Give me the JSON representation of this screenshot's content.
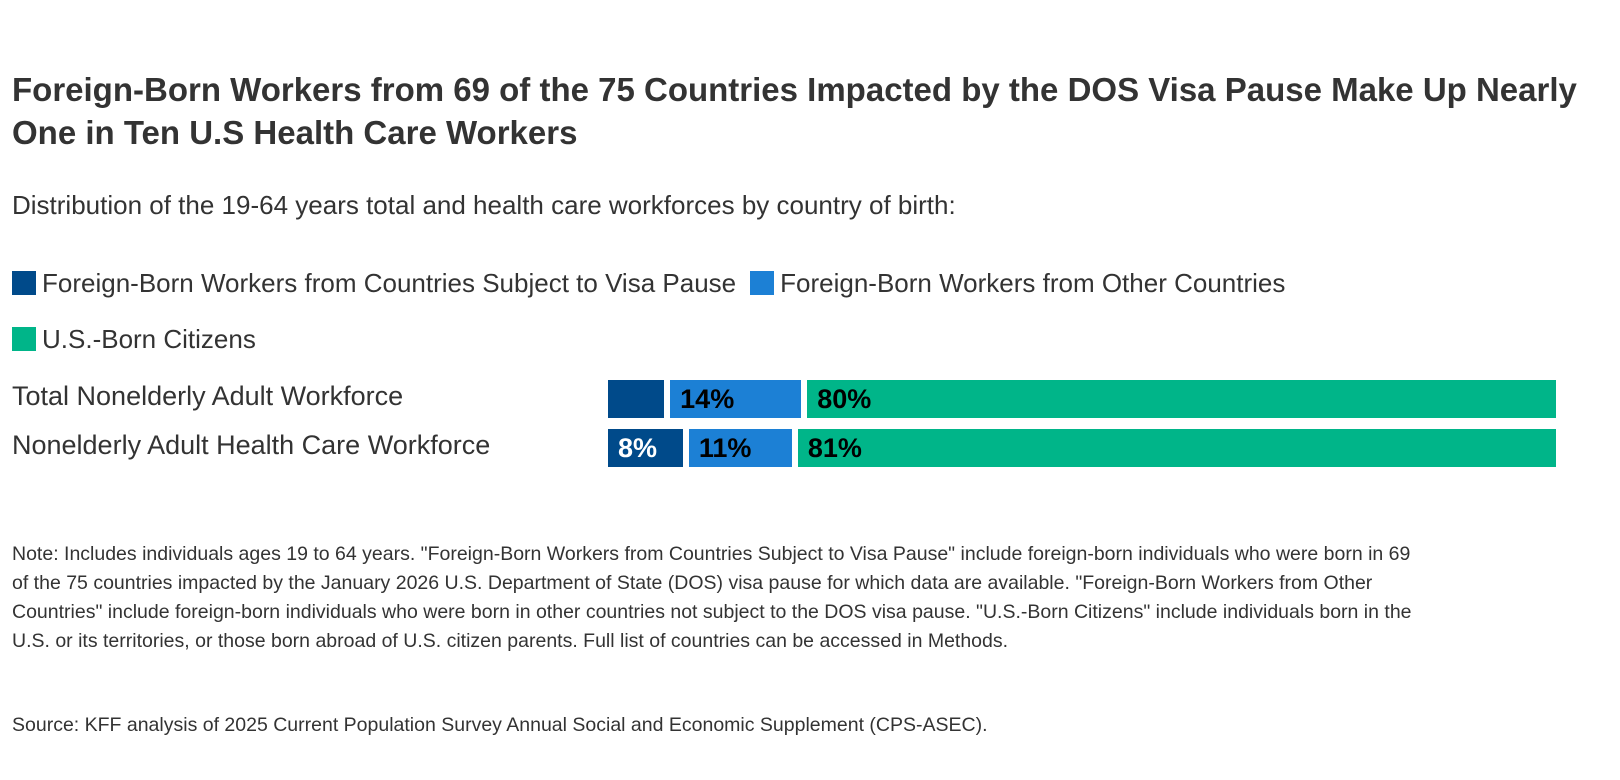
{
  "chart_data": {
    "type": "bar",
    "orientation": "horizontal",
    "stacked": true,
    "title": "Foreign-Born Workers from 69 of the 75 Countries Impacted by the DOS Visa Pause Make Up Nearly One in Ten U.S Health Care Workers",
    "subtitle": "Distribution of the 19-64 years total and health care workforces by country of birth:",
    "legend_position": "top",
    "grid": false,
    "categories": [
      "Total Nonelderly Adult Workforce",
      "Nonelderly Adult Health Care Workforce"
    ],
    "series": [
      {
        "name": "Foreign-Born Workers from Countries Subject to Visa Pause",
        "color": "#004a8a",
        "label_color": "#ffffff",
        "values": [
          6,
          8
        ],
        "labels": [
          "",
          "8%"
        ]
      },
      {
        "name": "Foreign-Born Workers from Other Countries",
        "color": "#1c80d5",
        "label_color": "#000000",
        "values": [
          14,
          11
        ],
        "labels": [
          "14%",
          "11%"
        ]
      },
      {
        "name": "U.S.-Born Citizens",
        "color": "#00b589",
        "label_color": "#000000",
        "values": [
          80,
          81
        ],
        "labels": [
          "80%",
          "81%"
        ]
      }
    ],
    "xlim": [
      0,
      100
    ]
  },
  "note": "Note: Includes individuals ages 19 to 64 years. \"Foreign-Born Workers from Countries Subject to Visa Pause\" include foreign-born individuals who were born in 69 of the 75 countries impacted by the January 2026 U.S. Department of State (DOS) visa pause for which data are available. \"Foreign-Born Workers from Other Countries\" include foreign-born individuals who were born in other countries not subject to the DOS visa pause. \"U.S.-Born Citizens\" include individuals born in the U.S. or its territories, or those born abroad of U.S. citizen parents. Full list of countries can be accessed in Methods.",
  "source": "Source: KFF analysis of 2025 Current Population Survey Annual Social and Economic Supplement (CPS-ASEC)."
}
